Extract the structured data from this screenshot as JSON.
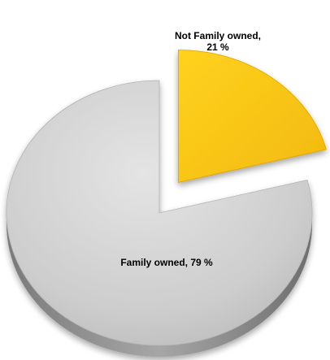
{
  "chart_data": {
    "type": "pie",
    "title": "",
    "style": "3d-exploded",
    "slices": [
      {
        "name": "Not Family owned",
        "value": 21,
        "label": "Not Family owned,",
        "label2": "21 %",
        "color": "#F6C21A",
        "exploded": true
      },
      {
        "name": "Family owned",
        "value": 79,
        "label": "Family owned, 79 %",
        "label2": "",
        "color": "#CFCFCF",
        "exploded": false
      }
    ]
  }
}
